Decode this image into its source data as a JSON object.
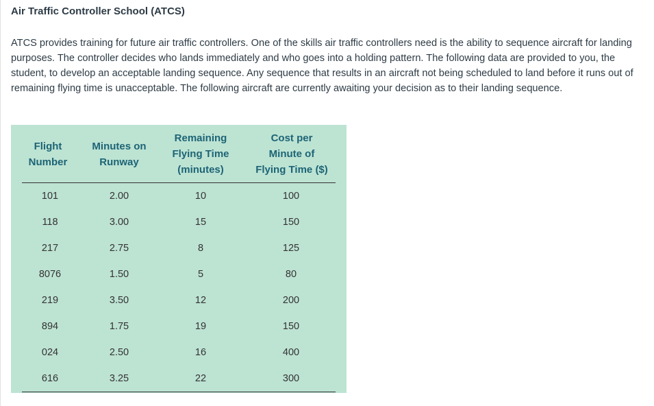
{
  "title": "Air Traffic Controller School (ATCS)",
  "intro": "ATCS provides training for future air traffic controllers. One of the skills air traffic controllers need is the ability to sequence aircraft for landing purposes. The controller decides who lands immediately and who goes into a holding pattern. The following data are provided to you, the student, to develop an acceptable landing sequence. Any sequence that results in an aircraft not being scheduled to land before it runs out of remaining flying time is unacceptable. The following aircraft are currently awaiting your decision as to their landing sequence.",
  "table": {
    "headers": [
      [
        "Flight",
        "Number"
      ],
      [
        "Minutes on",
        "Runway"
      ],
      [
        "Remaining",
        "Flying Time",
        "(minutes)"
      ],
      [
        "Cost per",
        "Minute of",
        "Flying Time ($)"
      ]
    ],
    "rows": [
      [
        "101",
        "2.00",
        "10",
        "100"
      ],
      [
        "118",
        "3.00",
        "15",
        "150"
      ],
      [
        "217",
        "2.75",
        "8",
        "125"
      ],
      [
        "8076",
        "1.50",
        "5",
        "80"
      ],
      [
        "219",
        "3.50",
        "12",
        "200"
      ],
      [
        "894",
        "1.75",
        "19",
        "150"
      ],
      [
        "024",
        "2.50",
        "16",
        "400"
      ],
      [
        "616",
        "3.25",
        "22",
        "300"
      ]
    ]
  },
  "colors": {
    "table_bg": "#bde3d3",
    "header_text": "#1d6475",
    "body_text": "#2d3b45"
  }
}
